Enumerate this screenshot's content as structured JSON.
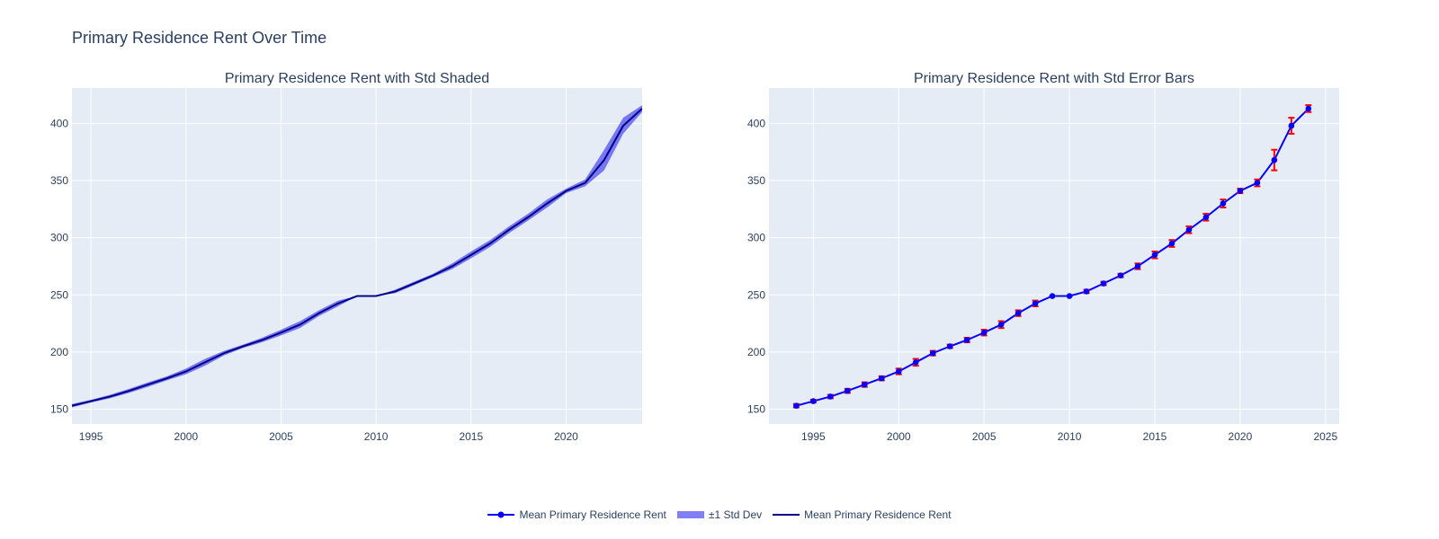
{
  "title": "Primary Residence Rent Over Time",
  "legend": {
    "item_markers": "Mean Primary Residence Rent",
    "item_band": "±1 Std Dev",
    "item_line": "Mean Primary Residence Rent"
  },
  "colors": {
    "plot_bg": "#e5ecf6",
    "grid": "#ffffff",
    "mean_line": "#0000ff",
    "shaded_line": "#00008b",
    "band_fill": "#6a6af2",
    "error_bars": "#ff0000",
    "text": "#2a3f5f"
  },
  "chart_data": [
    {
      "type": "area",
      "title": "Primary Residence Rent with Std Shaded",
      "xlabel": "",
      "ylabel": "",
      "xlim": [
        1994,
        2024
      ],
      "ylim": [
        137,
        431
      ],
      "grid": true,
      "x_ticks": [
        1995,
        2000,
        2005,
        2010,
        2015,
        2020
      ],
      "y_ticks": [
        150,
        200,
        250,
        300,
        350,
        400
      ],
      "x": [
        1994,
        1995,
        1996,
        1997,
        1998,
        1999,
        2000,
        2001,
        2002,
        2003,
        2004,
        2005,
        2006,
        2007,
        2008,
        2009,
        2010,
        2011,
        2012,
        2013,
        2014,
        2015,
        2016,
        2017,
        2018,
        2019,
        2020,
        2021,
        2022,
        2023,
        2024
      ],
      "series": [
        {
          "name": "Mean Primary Residence Rent",
          "kind": "line",
          "values": [
            153,
            157,
            161,
            166,
            171.5,
            177,
            183,
            191,
            199,
            205,
            210.5,
            217,
            224,
            234,
            242.5,
            249,
            249,
            253,
            260,
            267,
            275,
            285,
            295,
            307,
            318,
            330,
            341,
            348,
            368,
            398,
            413
          ]
        },
        {
          "name": "±1 Std Dev",
          "kind": "band",
          "std": [
            1.5,
            1.2,
            1.5,
            1.8,
            2,
            1.8,
            2.5,
            3,
            2,
            1.5,
            2,
            2.5,
            3,
            2.5,
            2.5,
            0,
            0,
            1.5,
            1.5,
            1.5,
            2.5,
            3,
            3,
            3,
            3,
            3.5,
            2,
            3,
            9,
            7,
            3
          ]
        }
      ]
    },
    {
      "type": "scatter",
      "title": "Primary Residence Rent with Std Error Bars",
      "xlabel": "",
      "ylabel": "",
      "xlim": [
        1992.4,
        2025.8
      ],
      "ylim": [
        137,
        431
      ],
      "grid": true,
      "x_ticks": [
        1995,
        2000,
        2005,
        2010,
        2015,
        2020,
        2025
      ],
      "y_ticks": [
        150,
        200,
        250,
        300,
        350,
        400
      ],
      "x": [
        1994,
        1995,
        1996,
        1997,
        1998,
        1999,
        2000,
        2001,
        2002,
        2003,
        2004,
        2005,
        2006,
        2007,
        2008,
        2009,
        2010,
        2011,
        2012,
        2013,
        2014,
        2015,
        2016,
        2017,
        2018,
        2019,
        2020,
        2021,
        2022,
        2023,
        2024
      ],
      "series": [
        {
          "name": "Mean Primary Residence Rent",
          "kind": "line+markers",
          "values": [
            153,
            157,
            161,
            166,
            171.5,
            177,
            183,
            191,
            199,
            205,
            210.5,
            217,
            224,
            234,
            242.5,
            249,
            249,
            253,
            260,
            267,
            275,
            285,
            295,
            307,
            318,
            330,
            341,
            348,
            368,
            398,
            413
          ],
          "error": [
            1.5,
            1.2,
            1.5,
            1.8,
            2,
            1.8,
            2.5,
            3,
            2,
            1.5,
            2,
            2.5,
            3,
            2.5,
            2.5,
            0,
            0,
            1.5,
            1.5,
            1.5,
            2.5,
            3,
            3,
            3,
            3,
            3.5,
            2,
            3,
            9,
            7,
            3
          ]
        }
      ]
    }
  ]
}
